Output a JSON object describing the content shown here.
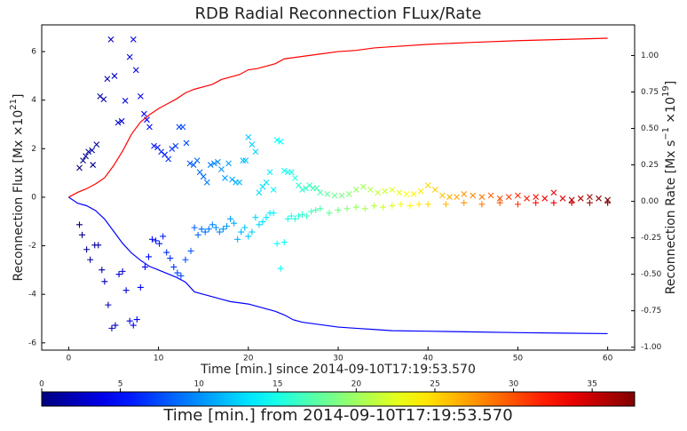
{
  "chart_data": {
    "type": "line",
    "title": "RDB Radial Reconnection FLux/Rate",
    "x_label": "Time [min.] since 2014-09-10T17:19:53.570",
    "y_label": [
      {
        "text": "Reconnection Flux [Mx ×10",
        "sup": false
      },
      {
        "text": "21",
        "sup": true
      },
      {
        "text": "]",
        "sup": false
      }
    ],
    "y2_label": [
      {
        "text": "Reconnection Rate  [Mx s",
        "sup": false
      },
      {
        "text": "−1",
        "sup": true
      },
      {
        "text": " ×10",
        "sup": false
      },
      {
        "text": "19",
        "sup": true
      },
      {
        "text": "]",
        "sup": false
      }
    ],
    "xlim": [
      -3,
      63
    ],
    "ylim": [
      -6.3,
      7.1
    ],
    "y2lim": [
      -1.02,
      1.21
    ],
    "xticks": [
      0,
      10,
      20,
      30,
      40,
      50,
      60
    ],
    "yticks": [
      -6,
      -4,
      -2,
      0,
      2,
      4,
      6
    ],
    "y2ticks": [
      {
        "value": -1,
        "label": "-1.00"
      },
      {
        "value": -0.75,
        "label": "-0.75"
      },
      {
        "value": -0.5,
        "label": "-0.50"
      },
      {
        "value": -0.25,
        "label": "-0.25"
      },
      {
        "value": 0,
        "label": "0.00"
      },
      {
        "value": 0.25,
        "label": "0.25"
      },
      {
        "value": 0.5,
        "label": "0.50"
      },
      {
        "value": 0.75,
        "label": "0.75"
      },
      {
        "value": 1,
        "label": "1.00"
      }
    ],
    "x": [
      0,
      1,
      2,
      3,
      4,
      5,
      6,
      7,
      8,
      9,
      10,
      11,
      12,
      13,
      14,
      15,
      16,
      17,
      18,
      19,
      20,
      21,
      22,
      23,
      24,
      25,
      26,
      28,
      30,
      32,
      34,
      36,
      40,
      45,
      50,
      55,
      60
    ],
    "series": [
      {
        "color": "#ff0000",
        "values": [
          0,
          0.2,
          0.35,
          0.55,
          0.8,
          1.3,
          1.9,
          2.6,
          3.1,
          3.4,
          3.65,
          3.85,
          4.05,
          4.3,
          4.45,
          4.55,
          4.65,
          4.85,
          4.95,
          5.05,
          5.25,
          5.3,
          5.4,
          5.5,
          5.7,
          5.75,
          5.8,
          5.9,
          6.0,
          6.05,
          6.15,
          6.2,
          6.3,
          6.38,
          6.45,
          6.5,
          6.55
        ]
      },
      {
        "color": "#0000ff",
        "values": [
          0,
          -0.25,
          -0.35,
          -0.55,
          -0.9,
          -1.4,
          -1.9,
          -2.3,
          -2.6,
          -2.85,
          -3.0,
          -3.15,
          -3.3,
          -3.5,
          -3.9,
          -4.0,
          -4.1,
          -4.2,
          -4.3,
          -4.35,
          -4.4,
          -4.5,
          -4.6,
          -4.7,
          -4.85,
          -5.05,
          -5.15,
          -5.25,
          -5.35,
          -5.4,
          -5.45,
          -5.5,
          -5.52,
          -5.55,
          -5.58,
          -5.6,
          -5.62
        ]
      }
    ],
    "scatter": [
      {
        "marker": "x",
        "axis": "y2",
        "x": [
          1.2,
          1.6,
          1.9,
          2.2,
          2.6,
          2.7,
          3.1,
          3.5,
          3.9,
          4.3,
          4.7,
          5.1,
          5.5,
          5.9,
          6.3,
          6.8,
          7.2,
          7.5,
          8.0,
          8.4,
          8.7,
          9.0,
          9.5,
          9.9,
          10.3,
          10.7,
          11.1,
          11.5,
          11.9,
          12.3,
          12.7,
          13.1,
          13.5,
          13.9,
          14.3,
          14.6,
          15.0,
          15.4,
          15.8,
          16.2,
          16.6,
          17.0,
          17.4,
          17.8,
          18.2,
          18.6,
          19.0,
          19.4,
          19.7,
          20.0,
          20.4,
          20.8,
          21.2,
          21.6,
          22.0,
          22.4,
          22.8,
          23.2,
          23.6,
          24.0,
          24.4,
          24.8,
          25.2,
          25.6,
          26.0,
          26.4,
          26.8,
          27.2,
          27.6,
          28.0,
          28.8,
          29.6,
          30.4,
          31.2,
          32.0,
          32.8,
          33.6,
          34.4,
          35.2,
          36.0,
          36.8,
          37.6,
          38.4,
          39.2,
          40.0,
          40.8,
          41.6,
          42.4,
          43.2,
          44.0,
          45,
          46,
          47,
          48,
          49,
          50,
          51,
          52,
          53,
          54,
          55,
          56,
          57,
          58,
          59,
          60
        ],
        "values": [
          0.23,
          0.28,
          0.31,
          0.34,
          0.35,
          0.25,
          0.39,
          0.72,
          0.7,
          0.84,
          1.11,
          0.86,
          0.54,
          0.55,
          0.69,
          0.99,
          1.11,
          0.9,
          0.72,
          0.6,
          0.56,
          0.51,
          0.38,
          0.37,
          0.34,
          0.32,
          0.29,
          0.36,
          0.38,
          0.51,
          0.51,
          0.4,
          0.26,
          0.25,
          0.28,
          0.2,
          0.17,
          0.13,
          0.25,
          0.26,
          0.27,
          0.22,
          0.16,
          0.26,
          0.15,
          0.13,
          0.13,
          0.28,
          0.28,
          0.44,
          0.39,
          0.34,
          0.06,
          0.1,
          0.13,
          0.2,
          0.08,
          0.42,
          0.41,
          0.21,
          0.2,
          0.2,
          0.16,
          0.11,
          0.08,
          0.09,
          0.11,
          0.09,
          0.09,
          0.06,
          0.05,
          0.04,
          0.04,
          0.05,
          0.08,
          0.1,
          0.08,
          0.06,
          0.07,
          0.08,
          0.06,
          0.05,
          0.05,
          0.07,
          0.11,
          0.08,
          0.04,
          0.03,
          0.03,
          0.05,
          0.04,
          0.03,
          0.04,
          0.02,
          0.03,
          0.04,
          0.02,
          0.03,
          0.02,
          0.06,
          0.02,
          0.01,
          0.02,
          0.03,
          0.02,
          0.01
        ]
      },
      {
        "marker": "+",
        "axis": "y2",
        "x": [
          1.2,
          1.5,
          2.0,
          2.4,
          2.9,
          3.3,
          3.7,
          4.0,
          4.4,
          4.8,
          5.2,
          5.6,
          6.0,
          6.4,
          6.8,
          7.2,
          7.6,
          8.0,
          8.5,
          8.9,
          9.3,
          9.7,
          10.1,
          10.5,
          10.9,
          11.3,
          11.7,
          12.1,
          12.5,
          13.0,
          13.6,
          14.0,
          14.4,
          14.8,
          15.2,
          15.6,
          16.0,
          16.4,
          16.8,
          17.2,
          17.6,
          18.0,
          18.4,
          18.8,
          19.2,
          19.6,
          20.0,
          20.4,
          20.8,
          21.2,
          21.6,
          22.0,
          22.4,
          22.8,
          23.2,
          23.6,
          24.0,
          24.4,
          24.8,
          25.2,
          25.6,
          26.0,
          26.5,
          27.0,
          27.5,
          28.0,
          29,
          30,
          31,
          32,
          33,
          34,
          35,
          36,
          37,
          38,
          39,
          40,
          42,
          44,
          46,
          48,
          50,
          52,
          54,
          56,
          58,
          60
        ],
        "values": [
          -0.16,
          -0.23,
          -0.33,
          -0.4,
          -0.3,
          -0.3,
          -0.47,
          -0.55,
          -0.71,
          -0.87,
          -0.85,
          -0.5,
          -0.48,
          -0.61,
          -0.82,
          -0.85,
          -0.81,
          -0.59,
          -0.45,
          -0.38,
          -0.26,
          -0.27,
          -0.29,
          -0.24,
          -0.35,
          -0.39,
          -0.45,
          -0.49,
          -0.51,
          -0.4,
          -0.34,
          -0.18,
          -0.23,
          -0.19,
          -0.21,
          -0.19,
          -0.16,
          -0.18,
          -0.21,
          -0.19,
          -0.17,
          -0.12,
          -0.15,
          -0.26,
          -0.21,
          -0.18,
          -0.24,
          -0.21,
          -0.11,
          -0.16,
          -0.14,
          -0.11,
          -0.08,
          -0.08,
          -0.29,
          -0.46,
          -0.28,
          -0.12,
          -0.1,
          -0.12,
          -0.1,
          -0.09,
          -0.1,
          -0.07,
          -0.06,
          -0.05,
          -0.08,
          -0.06,
          -0.05,
          -0.04,
          -0.05,
          -0.03,
          -0.04,
          -0.03,
          -0.02,
          -0.03,
          -0.02,
          -0.02,
          -0.02,
          -0.01,
          -0.02,
          -0.01,
          -0.02,
          -0.01,
          -0.01,
          -0.01,
          -0.01,
          -0.01
        ]
      }
    ],
    "colormap": "jet",
    "colorbar": {
      "lim": [
        0,
        37.7
      ],
      "ticks": [
        0,
        5,
        10,
        15,
        20,
        25,
        30,
        35
      ],
      "label": "Time [min.] from 2014-09-10T17:19:53.570"
    }
  }
}
